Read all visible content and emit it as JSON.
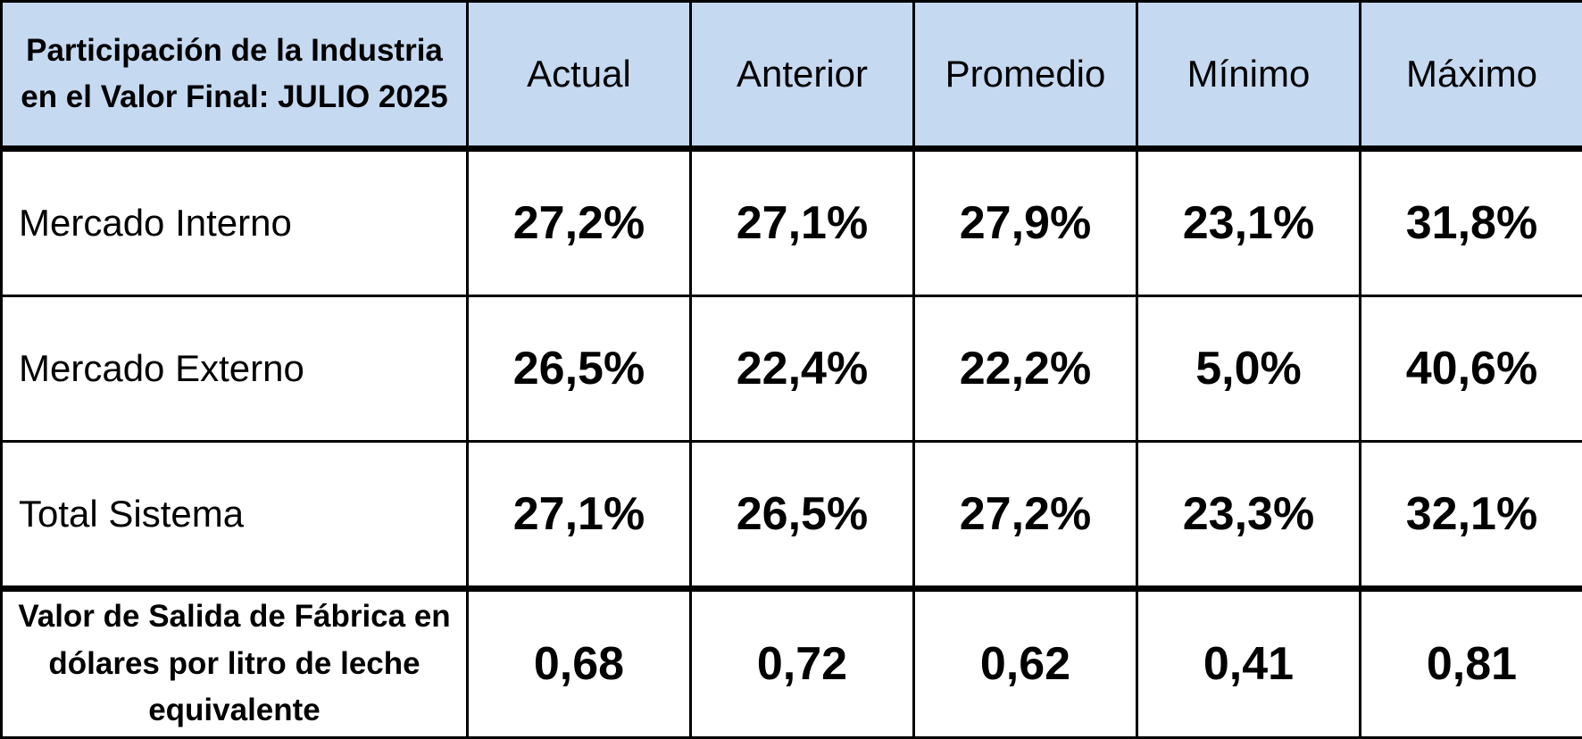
{
  "table": {
    "corner_title": "Participación de la Industria en el Valor Final: JULIO 2025",
    "columns": [
      "Actual",
      "Anterior",
      "Promedio",
      "Mínimo",
      "Máximo"
    ],
    "rows": [
      {
        "label": "Mercado Interno",
        "values": [
          "27,2%",
          "27,1%",
          "27,9%",
          "23,1%",
          "31,8%"
        ]
      },
      {
        "label": "Mercado Externo",
        "values": [
          "26,5%",
          "22,4%",
          "22,2%",
          "5,0%",
          "40,6%"
        ]
      },
      {
        "label": "Total Sistema",
        "values": [
          "27,1%",
          "26,5%",
          "27,2%",
          "23,3%",
          "32,1%"
        ]
      }
    ],
    "price_row": {
      "label": "Valor de Salida de Fábrica en dólares por litro de leche equivalente",
      "values": [
        "0,68",
        "0,72",
        "0,62",
        "0,41",
        "0,81"
      ]
    },
    "colors": {
      "header_fill": "#c5d9f1",
      "border": "#000000"
    }
  }
}
